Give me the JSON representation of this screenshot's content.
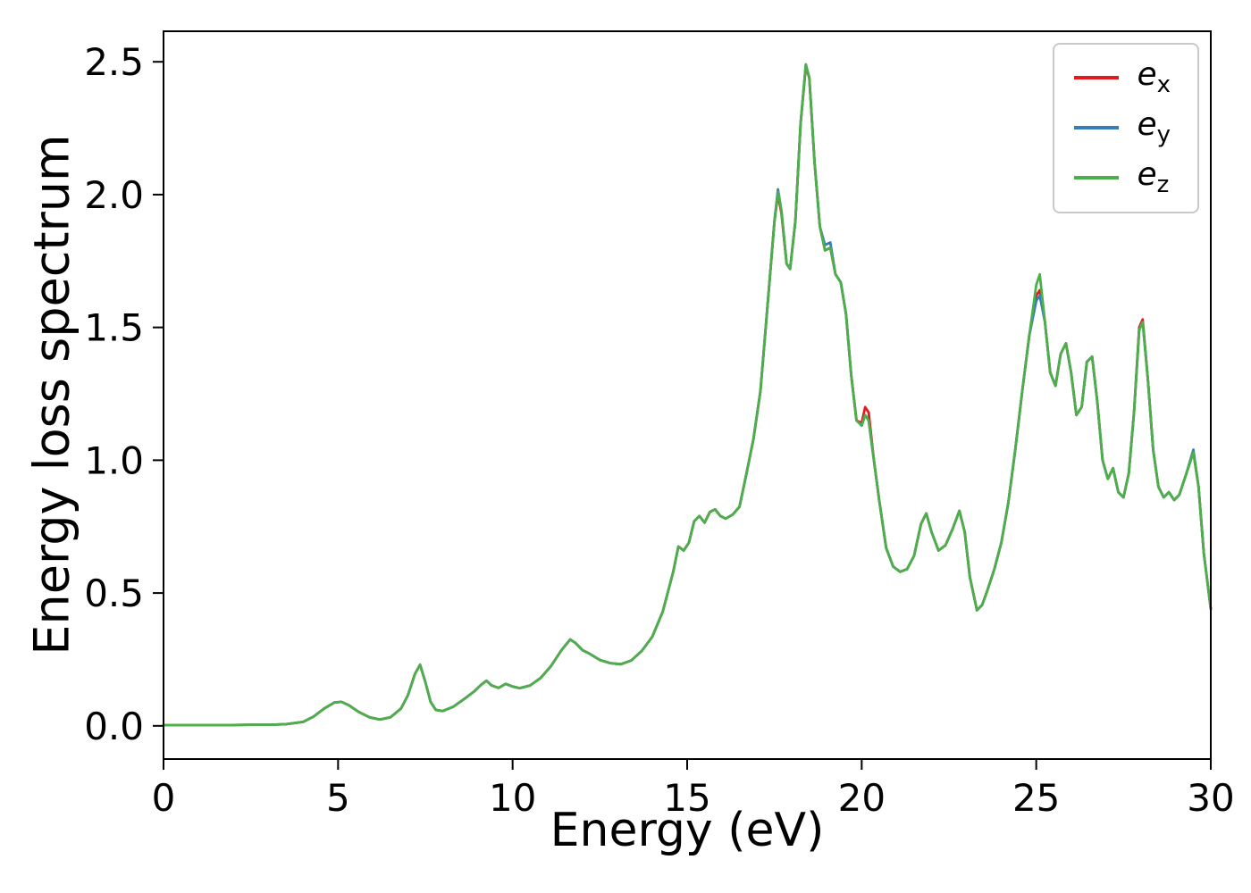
{
  "chart_data": {
    "type": "line",
    "title": "",
    "xlabel": "Energy (eV)",
    "ylabel": "Energy loss spectrum",
    "xlim": [
      0,
      30
    ],
    "ylim": [
      -0.125,
      2.615
    ],
    "grid": false,
    "legend_position": "upper right",
    "x_ticks": [
      0,
      5,
      10,
      15,
      20,
      25,
      30
    ],
    "x_tick_labels": [
      "0",
      "5",
      "10",
      "15",
      "20",
      "25",
      "30"
    ],
    "y_ticks": [
      0,
      0.5,
      1.0,
      1.5,
      2.0,
      2.5
    ],
    "y_tick_labels": [
      "0.0",
      "0.5",
      "1.0",
      "1.5",
      "2.0",
      "2.5"
    ],
    "x": [
      0,
      0.5,
      1,
      1.5,
      2,
      2.5,
      3,
      3.5,
      4,
      4.3,
      4.6,
      4.9,
      5.1,
      5.3,
      5.6,
      5.9,
      6.2,
      6.5,
      6.8,
      7.0,
      7.2,
      7.35,
      7.5,
      7.65,
      7.8,
      8.0,
      8.3,
      8.6,
      8.9,
      9.1,
      9.25,
      9.4,
      9.6,
      9.8,
      10.0,
      10.2,
      10.5,
      10.8,
      11.1,
      11.4,
      11.65,
      11.8,
      12.0,
      12.2,
      12.5,
      12.8,
      13.1,
      13.4,
      13.7,
      14.0,
      14.3,
      14.6,
      14.75,
      14.9,
      15.05,
      15.2,
      15.35,
      15.5,
      15.65,
      15.8,
      15.95,
      16.1,
      16.3,
      16.5,
      16.7,
      16.9,
      17.1,
      17.3,
      17.5,
      17.6,
      17.7,
      17.85,
      17.95,
      18.1,
      18.25,
      18.4,
      18.5,
      18.65,
      18.8,
      18.95,
      19.1,
      19.25,
      19.4,
      19.55,
      19.7,
      19.85,
      20.0,
      20.1,
      20.2,
      20.35,
      20.5,
      20.7,
      20.9,
      21.1,
      21.3,
      21.5,
      21.7,
      21.85,
      22.0,
      22.2,
      22.4,
      22.6,
      22.8,
      22.95,
      23.1,
      23.3,
      23.45,
      23.6,
      23.8,
      24.0,
      24.2,
      24.4,
      24.6,
      24.8,
      25.0,
      25.1,
      25.25,
      25.4,
      25.55,
      25.7,
      25.85,
      26.0,
      26.15,
      26.3,
      26.45,
      26.6,
      26.75,
      26.9,
      27.05,
      27.2,
      27.35,
      27.5,
      27.65,
      27.8,
      27.95,
      28.05,
      28.2,
      28.35,
      28.5,
      28.65,
      28.8,
      28.95,
      29.1,
      29.3,
      29.5,
      29.65,
      29.8,
      30.0
    ],
    "series": [
      {
        "name": "e_x",
        "label_base": "e",
        "label_sub": "x",
        "color": "#e41a1c",
        "values": [
          0.003,
          0.003,
          0.003,
          0.003,
          0.003,
          0.004,
          0.004,
          0.006,
          0.015,
          0.035,
          0.065,
          0.088,
          0.09,
          0.078,
          0.052,
          0.032,
          0.024,
          0.032,
          0.065,
          0.115,
          0.195,
          0.23,
          0.165,
          0.09,
          0.06,
          0.056,
          0.072,
          0.1,
          0.13,
          0.155,
          0.17,
          0.152,
          0.143,
          0.158,
          0.148,
          0.142,
          0.152,
          0.18,
          0.225,
          0.285,
          0.325,
          0.312,
          0.285,
          0.272,
          0.248,
          0.236,
          0.232,
          0.246,
          0.282,
          0.335,
          0.43,
          0.58,
          0.675,
          0.66,
          0.69,
          0.77,
          0.79,
          0.765,
          0.805,
          0.815,
          0.79,
          0.78,
          0.795,
          0.825,
          0.95,
          1.08,
          1.26,
          1.58,
          1.9,
          2.0,
          1.93,
          1.74,
          1.72,
          1.9,
          2.27,
          2.48,
          2.44,
          2.12,
          1.88,
          1.79,
          1.8,
          1.7,
          1.67,
          1.55,
          1.32,
          1.15,
          1.14,
          1.2,
          1.18,
          1.0,
          0.85,
          0.67,
          0.6,
          0.58,
          0.59,
          0.64,
          0.76,
          0.8,
          0.73,
          0.66,
          0.68,
          0.74,
          0.81,
          0.73,
          0.56,
          0.435,
          0.455,
          0.51,
          0.59,
          0.69,
          0.84,
          1.04,
          1.26,
          1.47,
          1.62,
          1.64,
          1.52,
          1.33,
          1.28,
          1.4,
          1.44,
          1.33,
          1.17,
          1.2,
          1.37,
          1.39,
          1.22,
          1.0,
          0.93,
          0.97,
          0.88,
          0.86,
          0.95,
          1.18,
          1.5,
          1.53,
          1.3,
          1.04,
          0.9,
          0.86,
          0.88,
          0.85,
          0.87,
          0.95,
          1.03,
          0.9,
          0.65,
          0.44
        ]
      },
      {
        "name": "e_y",
        "label_base": "e",
        "label_sub": "y",
        "color": "#377eb8",
        "values": [
          0.003,
          0.003,
          0.003,
          0.003,
          0.003,
          0.004,
          0.004,
          0.006,
          0.015,
          0.035,
          0.065,
          0.088,
          0.09,
          0.078,
          0.052,
          0.032,
          0.024,
          0.032,
          0.065,
          0.115,
          0.195,
          0.23,
          0.165,
          0.09,
          0.06,
          0.056,
          0.072,
          0.1,
          0.13,
          0.155,
          0.17,
          0.152,
          0.143,
          0.158,
          0.148,
          0.142,
          0.152,
          0.18,
          0.225,
          0.285,
          0.325,
          0.312,
          0.285,
          0.272,
          0.248,
          0.236,
          0.232,
          0.246,
          0.282,
          0.335,
          0.43,
          0.58,
          0.675,
          0.66,
          0.69,
          0.77,
          0.79,
          0.765,
          0.805,
          0.815,
          0.79,
          0.78,
          0.795,
          0.825,
          0.95,
          1.08,
          1.26,
          1.58,
          1.9,
          2.02,
          1.94,
          1.74,
          1.72,
          1.9,
          2.27,
          2.49,
          2.44,
          2.12,
          1.88,
          1.81,
          1.82,
          1.7,
          1.67,
          1.55,
          1.32,
          1.15,
          1.13,
          1.17,
          1.15,
          1.0,
          0.85,
          0.67,
          0.6,
          0.58,
          0.59,
          0.64,
          0.76,
          0.8,
          0.73,
          0.66,
          0.68,
          0.74,
          0.81,
          0.73,
          0.56,
          0.435,
          0.455,
          0.51,
          0.59,
          0.69,
          0.84,
          1.04,
          1.26,
          1.47,
          1.6,
          1.62,
          1.52,
          1.33,
          1.28,
          1.4,
          1.44,
          1.33,
          1.17,
          1.2,
          1.37,
          1.39,
          1.22,
          1.0,
          0.93,
          0.97,
          0.88,
          0.86,
          0.95,
          1.18,
          1.49,
          1.52,
          1.3,
          1.04,
          0.9,
          0.86,
          0.88,
          0.85,
          0.87,
          0.95,
          1.04,
          0.9,
          0.65,
          0.44
        ]
      },
      {
        "name": "e_z",
        "label_base": "e",
        "label_sub": "z",
        "color": "#4daf4a",
        "values": [
          0.003,
          0.003,
          0.003,
          0.003,
          0.003,
          0.004,
          0.004,
          0.006,
          0.015,
          0.035,
          0.065,
          0.088,
          0.09,
          0.078,
          0.052,
          0.032,
          0.024,
          0.032,
          0.065,
          0.115,
          0.195,
          0.23,
          0.165,
          0.09,
          0.06,
          0.056,
          0.072,
          0.1,
          0.13,
          0.155,
          0.17,
          0.152,
          0.143,
          0.158,
          0.148,
          0.142,
          0.152,
          0.18,
          0.225,
          0.285,
          0.325,
          0.312,
          0.285,
          0.272,
          0.248,
          0.236,
          0.232,
          0.246,
          0.282,
          0.335,
          0.43,
          0.58,
          0.675,
          0.66,
          0.69,
          0.77,
          0.79,
          0.765,
          0.805,
          0.815,
          0.79,
          0.78,
          0.795,
          0.825,
          0.95,
          1.08,
          1.26,
          1.58,
          1.9,
          2.01,
          1.94,
          1.74,
          1.72,
          1.9,
          2.27,
          2.49,
          2.44,
          2.12,
          1.88,
          1.79,
          1.8,
          1.7,
          1.67,
          1.55,
          1.32,
          1.15,
          1.13,
          1.17,
          1.15,
          1.0,
          0.85,
          0.67,
          0.6,
          0.58,
          0.59,
          0.64,
          0.76,
          0.8,
          0.73,
          0.66,
          0.68,
          0.74,
          0.81,
          0.73,
          0.56,
          0.435,
          0.455,
          0.51,
          0.59,
          0.69,
          0.84,
          1.04,
          1.26,
          1.47,
          1.66,
          1.7,
          1.52,
          1.33,
          1.28,
          1.4,
          1.44,
          1.33,
          1.17,
          1.2,
          1.37,
          1.39,
          1.22,
          1.0,
          0.93,
          0.97,
          0.88,
          0.86,
          0.95,
          1.18,
          1.49,
          1.52,
          1.3,
          1.04,
          0.9,
          0.86,
          0.88,
          0.85,
          0.87,
          0.95,
          1.03,
          0.9,
          0.65,
          0.44
        ]
      }
    ]
  }
}
